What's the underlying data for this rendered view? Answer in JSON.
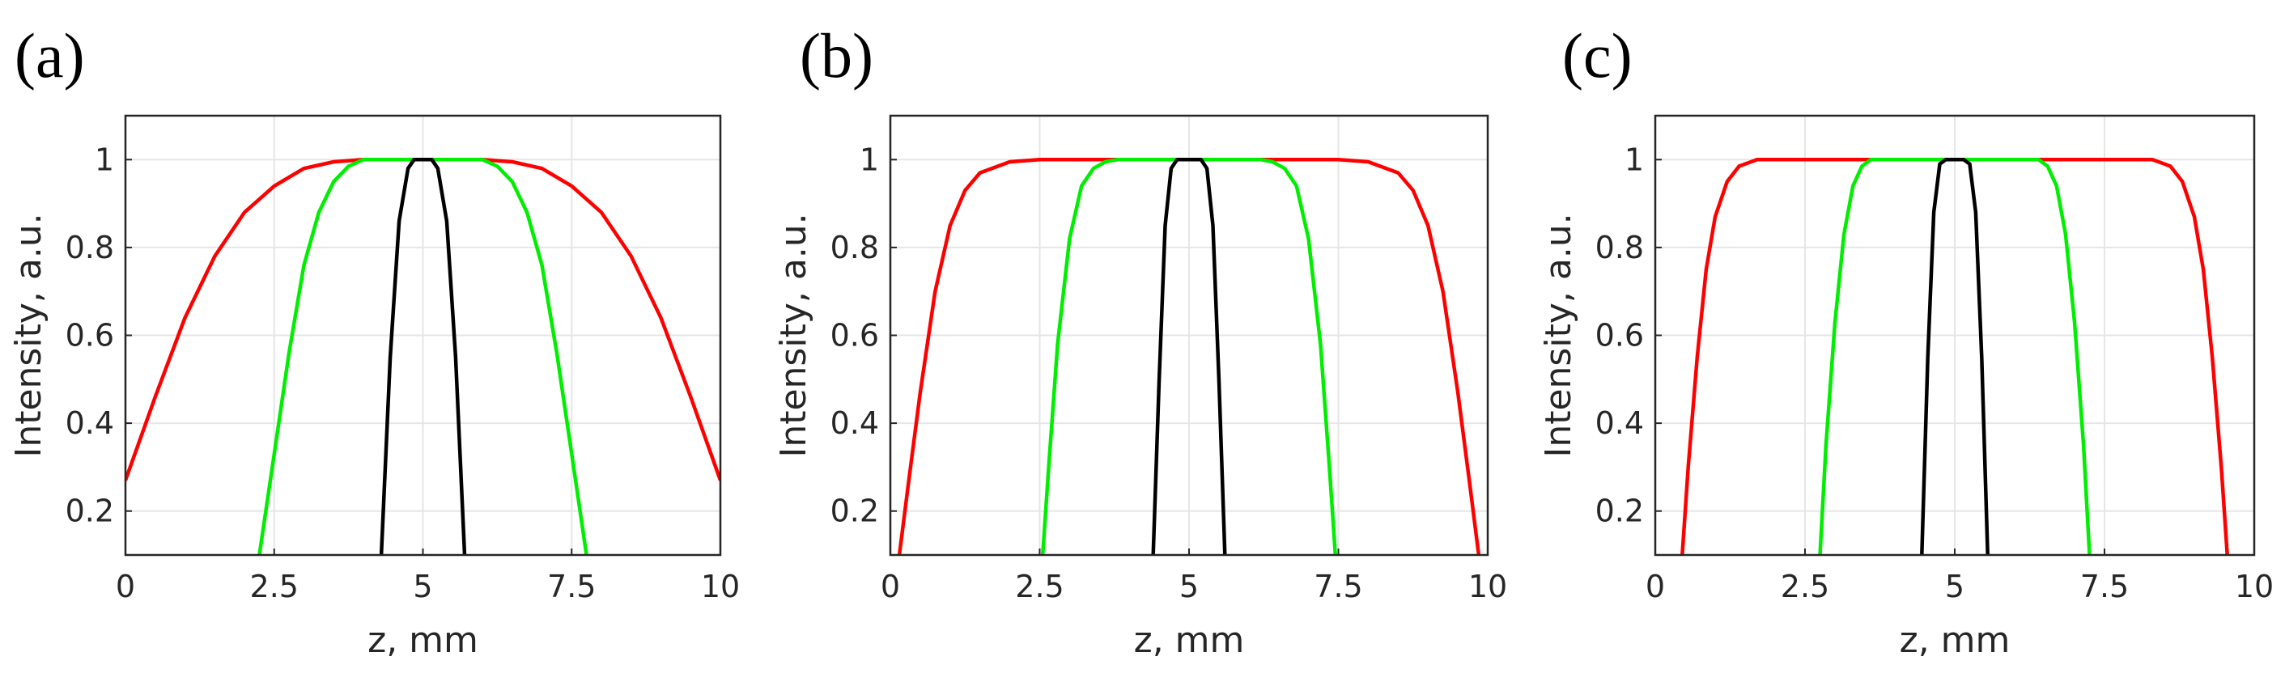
{
  "chart_data": [
    {
      "type": "line",
      "panel_label": "(a)",
      "xlabel": "z, mm",
      "ylabel": "Intensity, a.u.",
      "xlim": [
        0,
        10
      ],
      "ylim": [
        0.1,
        1.1
      ],
      "xticks": [
        0,
        2.5,
        5,
        7.5,
        10
      ],
      "xtick_labels": [
        "0",
        "2.5",
        "5",
        "7.5",
        "10"
      ],
      "yticks": [
        0.2,
        0.4,
        0.6,
        0.8,
        1
      ],
      "ytick_labels": [
        "0.2",
        "0.4",
        "0.6",
        "0.8",
        "1"
      ],
      "grid": true,
      "series": [
        {
          "color": "#ff0000",
          "x": [
            0,
            0.5,
            1,
            1.5,
            2,
            2.5,
            3,
            3.5,
            4,
            4.5,
            5,
            5.5,
            6,
            6.5,
            7,
            7.5,
            8,
            8.5,
            9,
            9.5,
            10
          ],
          "values": [
            0.27,
            0.46,
            0.64,
            0.78,
            0.88,
            0.94,
            0.98,
            0.995,
            1,
            1,
            1,
            1,
            1,
            0.995,
            0.98,
            0.94,
            0.88,
            0.78,
            0.64,
            0.46,
            0.27
          ]
        },
        {
          "color": "#00ee00",
          "x": [
            2.25,
            2.5,
            2.75,
            3,
            3.25,
            3.5,
            3.75,
            4,
            4.5,
            5,
            5.5,
            6,
            6.25,
            6.5,
            6.75,
            7,
            7.25,
            7.5,
            7.75
          ],
          "values": [
            0.1,
            0.33,
            0.56,
            0.76,
            0.88,
            0.95,
            0.985,
            1,
            1,
            1,
            1,
            1,
            0.985,
            0.95,
            0.88,
            0.76,
            0.56,
            0.33,
            0.1
          ]
        },
        {
          "color": "#000000",
          "x": [
            4.3,
            4.45,
            4.6,
            4.75,
            4.85,
            5,
            5.15,
            5.25,
            5.4,
            5.55,
            5.7
          ],
          "values": [
            0.1,
            0.55,
            0.86,
            0.98,
            1,
            1,
            1,
            0.98,
            0.86,
            0.55,
            0.1
          ]
        }
      ]
    },
    {
      "type": "line",
      "panel_label": "(b)",
      "xlabel": "z, mm",
      "ylabel": "Intensity, a.u.",
      "xlim": [
        0,
        10
      ],
      "ylim": [
        0.1,
        1.1
      ],
      "xticks": [
        0,
        2.5,
        5,
        7.5,
        10
      ],
      "xtick_labels": [
        "0",
        "2.5",
        "5",
        "7.5",
        "10"
      ],
      "yticks": [
        0.2,
        0.4,
        0.6,
        0.8,
        1
      ],
      "ytick_labels": [
        "0.2",
        "0.4",
        "0.6",
        "0.8",
        "1"
      ],
      "grid": true,
      "series": [
        {
          "color": "#ff0000",
          "x": [
            0.15,
            0.3,
            0.5,
            0.75,
            1,
            1.25,
            1.5,
            2,
            2.5,
            3,
            5,
            7,
            7.5,
            8,
            8.5,
            8.75,
            9,
            9.25,
            9.5,
            9.7,
            9.85
          ],
          "values": [
            0.1,
            0.26,
            0.47,
            0.7,
            0.85,
            0.93,
            0.97,
            0.995,
            1,
            1,
            1,
            1,
            1,
            0.995,
            0.97,
            0.93,
            0.85,
            0.7,
            0.47,
            0.26,
            0.1
          ]
        },
        {
          "color": "#00ee00",
          "x": [
            2.55,
            2.65,
            2.8,
            3,
            3.2,
            3.4,
            3.6,
            3.8,
            4,
            5,
            6,
            6.2,
            6.4,
            6.6,
            6.8,
            7,
            7.2,
            7.35,
            7.45
          ],
          "values": [
            0.1,
            0.3,
            0.58,
            0.82,
            0.94,
            0.98,
            0.995,
            1,
            1,
            1,
            1,
            1,
            0.995,
            0.98,
            0.94,
            0.82,
            0.58,
            0.3,
            0.1
          ]
        },
        {
          "color": "#000000",
          "x": [
            4.4,
            4.5,
            4.6,
            4.7,
            4.8,
            5,
            5.2,
            5.3,
            5.4,
            5.5,
            5.6
          ],
          "values": [
            0.1,
            0.5,
            0.85,
            0.98,
            1,
            1,
            1,
            0.98,
            0.85,
            0.5,
            0.1
          ]
        }
      ]
    },
    {
      "type": "line",
      "panel_label": "(c)",
      "xlabel": "z, mm",
      "ylabel": "Intensity, a.u.",
      "xlim": [
        0,
        10
      ],
      "ylim": [
        0.1,
        1.1
      ],
      "xticks": [
        0,
        2.5,
        5,
        7.5,
        10
      ],
      "xtick_labels": [
        "0",
        "2.5",
        "5",
        "7.5",
        "10"
      ],
      "yticks": [
        0.2,
        0.4,
        0.6,
        0.8,
        1
      ],
      "ytick_labels": [
        "0.2",
        "0.4",
        "0.6",
        "0.8",
        "1"
      ],
      "grid": true,
      "series": [
        {
          "color": "#ff0000",
          "x": [
            0.45,
            0.55,
            0.7,
            0.85,
            1,
            1.2,
            1.4,
            1.7,
            2,
            2.5,
            5,
            7.5,
            8,
            8.3,
            8.6,
            8.8,
            9,
            9.15,
            9.3,
            9.45,
            9.55
          ],
          "values": [
            0.1,
            0.3,
            0.55,
            0.75,
            0.87,
            0.95,
            0.985,
            1,
            1,
            1,
            1,
            1,
            1,
            1,
            0.985,
            0.95,
            0.87,
            0.75,
            0.55,
            0.3,
            0.1
          ]
        },
        {
          "color": "#00ee00",
          "x": [
            2.75,
            2.85,
            3,
            3.15,
            3.3,
            3.45,
            3.6,
            3.8,
            4,
            5,
            6,
            6.2,
            6.4,
            6.55,
            6.7,
            6.85,
            7,
            7.15,
            7.25
          ],
          "values": [
            0.1,
            0.35,
            0.63,
            0.83,
            0.94,
            0.985,
            1,
            1,
            1,
            1,
            1,
            1,
            1,
            0.985,
            0.94,
            0.83,
            0.63,
            0.35,
            0.1
          ]
        },
        {
          "color": "#000000",
          "x": [
            4.45,
            4.55,
            4.65,
            4.75,
            4.85,
            5,
            5.15,
            5.25,
            5.35,
            5.45,
            5.55
          ],
          "values": [
            0.1,
            0.55,
            0.88,
            0.99,
            1,
            1,
            1,
            0.99,
            0.88,
            0.55,
            0.1
          ]
        }
      ]
    }
  ]
}
